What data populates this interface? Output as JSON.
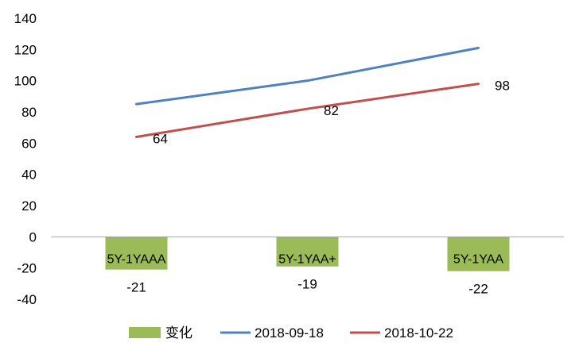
{
  "chart_data": {
    "type": "bar+line",
    "categories": [
      "5Y-1YAAA",
      "5Y-1YAA+",
      "5Y-1YAA"
    ],
    "y_ticks": [
      "140",
      "120",
      "100",
      "80",
      "60",
      "40",
      "20",
      "0",
      "-20",
      "-40"
    ],
    "ylim": [
      -40,
      140
    ],
    "grid": false,
    "legend_position": "bottom",
    "series": [
      {
        "name": "变化",
        "type": "bar",
        "values": [
          -21,
          -19,
          -22
        ],
        "labels": [
          "-21",
          "-19",
          "-22"
        ],
        "color": "#9bbb59"
      },
      {
        "name": "2018-09-18",
        "type": "line",
        "values": [
          85,
          100,
          121
        ],
        "color": "#4f81bd"
      },
      {
        "name": "2018-10-22",
        "type": "line",
        "values": [
          64,
          82,
          98
        ],
        "labels": [
          "64",
          "82",
          "98"
        ],
        "color": "#c0504d"
      }
    ]
  }
}
